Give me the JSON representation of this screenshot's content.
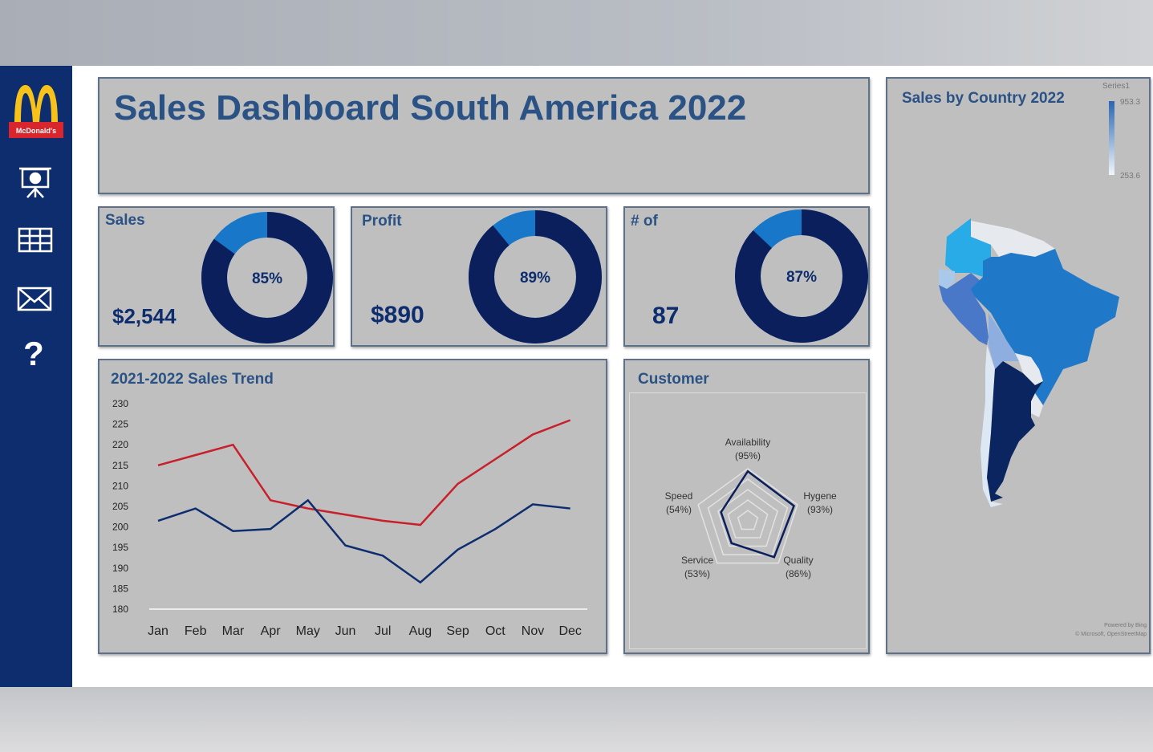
{
  "header": {
    "title": "Sales Dashboard South America 2022"
  },
  "sidebar": {
    "logo_text": "McDonald's",
    "items": [
      {
        "icon": "presentation-chart-icon"
      },
      {
        "icon": "table-grid-icon"
      },
      {
        "icon": "mail-icon"
      },
      {
        "icon": "help-question-icon",
        "glyph": "?"
      }
    ]
  },
  "kpis": [
    {
      "label": "Sales",
      "value": "$2,544",
      "percent": 85,
      "percent_label": "85%"
    },
    {
      "label": "Profit",
      "value": "$890",
      "percent": 89,
      "percent_label": "89%"
    },
    {
      "label": "# of",
      "value": "87",
      "percent": 87,
      "percent_label": "87%"
    }
  ],
  "colors": {
    "navy": "#0b1f5c",
    "blue": "#1877c8",
    "title": "#2a5285",
    "red": "#c8202a",
    "sidebar": "#0d2d6e"
  },
  "chart_data": [
    {
      "type": "line",
      "title": "2021-2022 Sales Trend",
      "categories": [
        "Jan",
        "Feb",
        "Mar",
        "Apr",
        "May",
        "Jun",
        "Jul",
        "Aug",
        "Sep",
        "Oct",
        "Nov",
        "Dec"
      ],
      "ylim": [
        180,
        230
      ],
      "yticks": [
        230,
        225,
        220,
        215,
        210,
        205,
        200,
        195,
        190,
        185,
        180
      ],
      "series": [
        {
          "color": "#c8202a",
          "values": [
            215,
            217.5,
            220,
            206.5,
            204.5,
            203,
            201.5,
            200.5,
            210.5,
            216.5,
            222.5,
            226
          ]
        },
        {
          "color": "#0d2d6e",
          "values": [
            201.5,
            204.5,
            199,
            199.5,
            206.5,
            195.5,
            193,
            186.5,
            194.5,
            199.5,
            205.5,
            204.5
          ]
        }
      ]
    },
    {
      "type": "radar",
      "title": "Customer",
      "categories": [
        "Availability",
        "Hygene",
        "Quality",
        "Service",
        "Speed"
      ],
      "labels": [
        "(95%)",
        "(93%)",
        "(86%)",
        "(53%)",
        "(54%)"
      ],
      "values": [
        95,
        93,
        86,
        53,
        54
      ]
    }
  ],
  "map": {
    "title": "Sales by Country 2022",
    "legend_series": "Series1",
    "legend_max": "953.3",
    "legend_min": "253.6",
    "credit1": "Powered by Bing",
    "credit2": "© Microsoft, OpenStreetMap"
  }
}
